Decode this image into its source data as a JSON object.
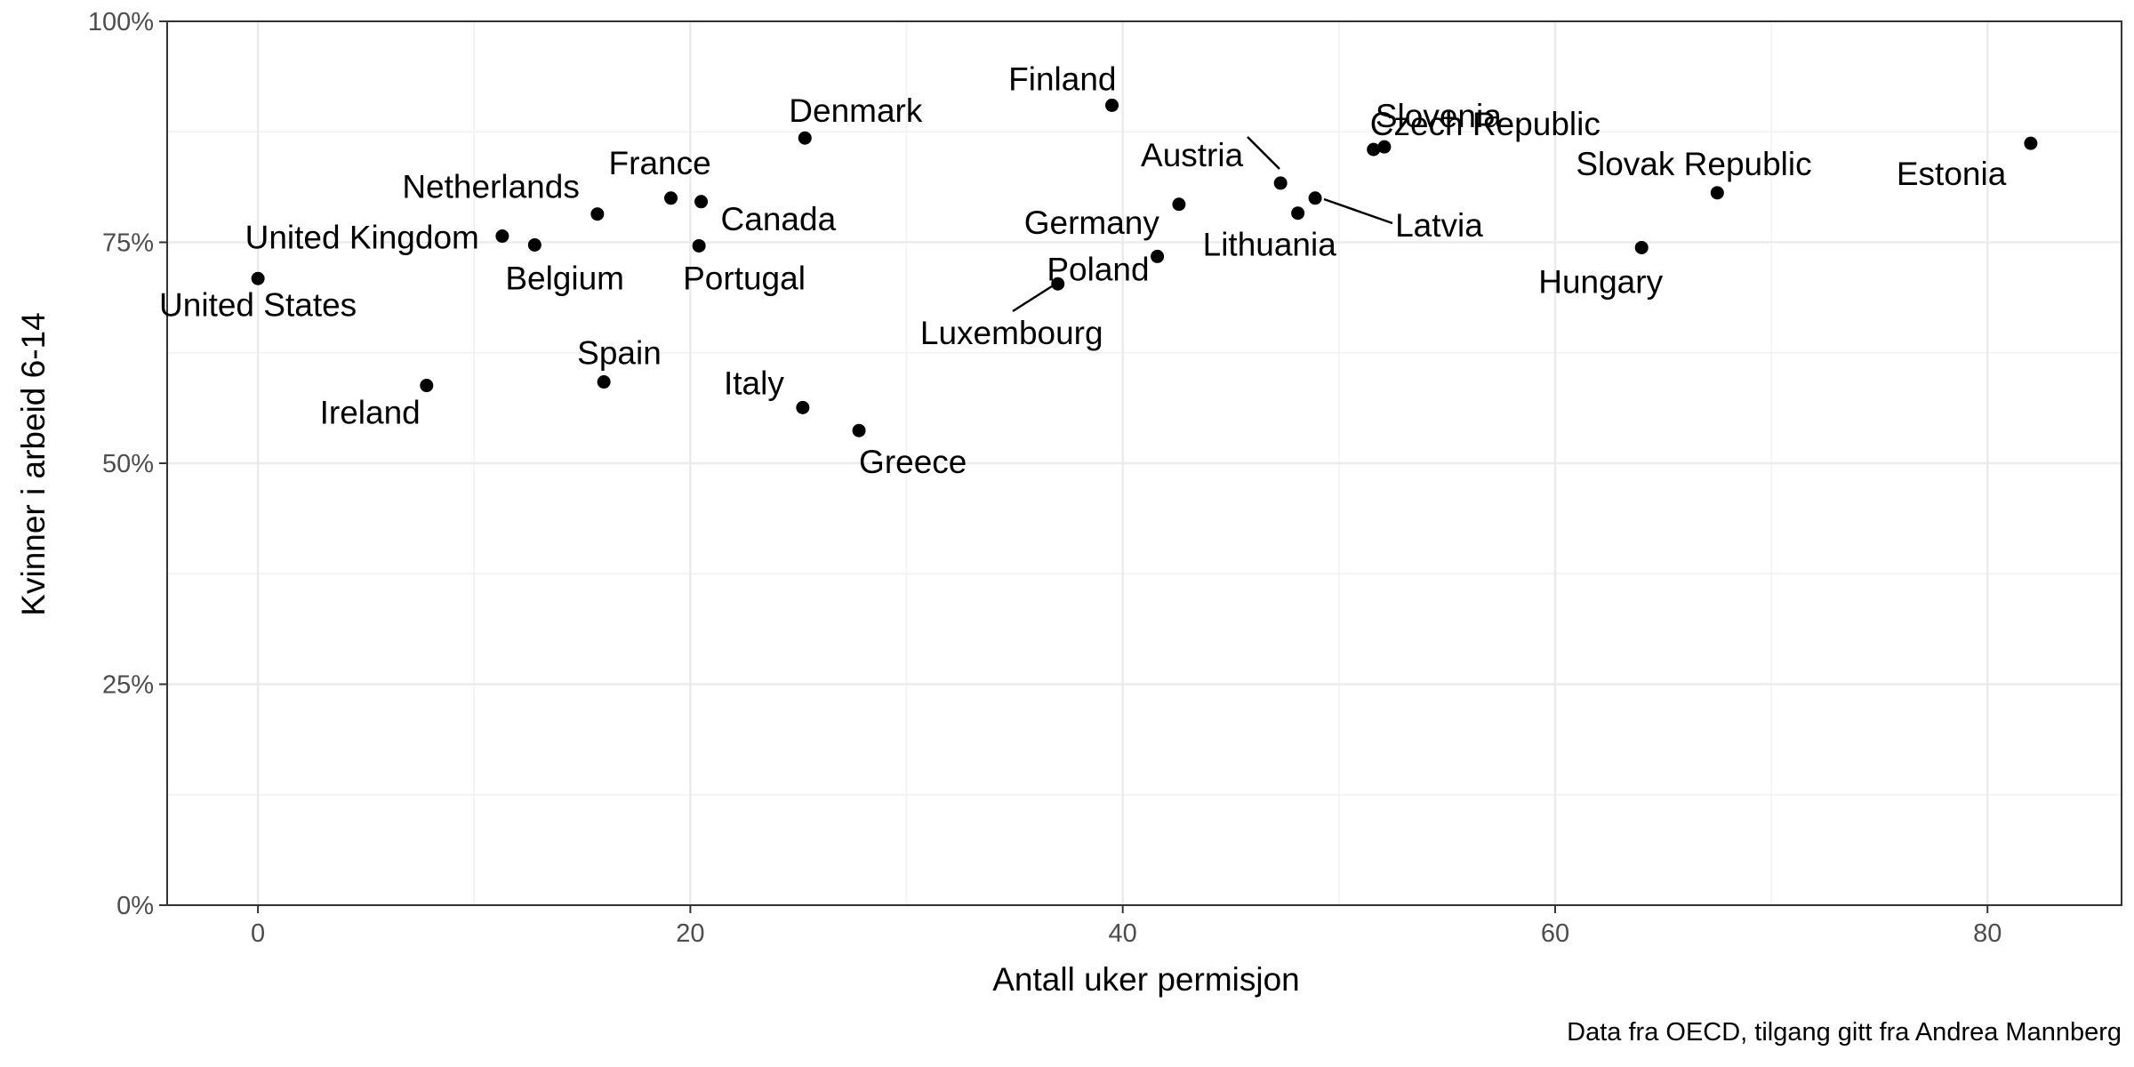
{
  "chart_data": {
    "type": "scatter",
    "title": "",
    "xlabel": "Antall uker permisjon",
    "ylabel": "Kvinner i arbeid 6-14",
    "caption": "Data fra OECD, tilgang gitt fra Andrea Mannberg",
    "xlim": [
      -4.2,
      86.2
    ],
    "ylim": [
      0,
      1
    ],
    "x_ticks": [
      0,
      20,
      40,
      60,
      80
    ],
    "x_tick_labels": [
      "0",
      "20",
      "40",
      "60",
      "80"
    ],
    "y_ticks": [
      0,
      0.25,
      0.5,
      0.75,
      1.0
    ],
    "y_tick_labels": [
      "0%",
      "25%",
      "50%",
      "75%",
      "100%"
    ],
    "grid": true,
    "points": [
      {
        "label": "United States",
        "x": 0,
        "y": 0.709
      },
      {
        "label": "Ireland",
        "x": 7.8,
        "y": 0.588
      },
      {
        "label": "United Kingdom",
        "x": 11.3,
        "y": 0.757
      },
      {
        "label": "Belgium",
        "x": 12.8,
        "y": 0.747
      },
      {
        "label": "Netherlands",
        "x": 15.7,
        "y": 0.782
      },
      {
        "label": "Spain",
        "x": 16.0,
        "y": 0.592
      },
      {
        "label": "France",
        "x": 19.1,
        "y": 0.8
      },
      {
        "label": "Portugal",
        "x": 20.4,
        "y": 0.746
      },
      {
        "label": "Canada",
        "x": 20.5,
        "y": 0.796
      },
      {
        "label": "Italy",
        "x": 25.2,
        "y": 0.563
      },
      {
        "label": "Denmark",
        "x": 25.3,
        "y": 0.868
      },
      {
        "label": "Greece",
        "x": 27.8,
        "y": 0.537
      },
      {
        "label": "Luxembourg",
        "x": 37.0,
        "y": 0.703
      },
      {
        "label": "Finland",
        "x": 39.5,
        "y": 0.905
      },
      {
        "label": "Poland",
        "x": 41.6,
        "y": 0.734
      },
      {
        "label": "Germany",
        "x": 42.6,
        "y": 0.793
      },
      {
        "label": "Austria",
        "x": 47.3,
        "y": 0.817
      },
      {
        "label": "Lithuania",
        "x": 48.1,
        "y": 0.783
      },
      {
        "label": "Latvia",
        "x": 48.9,
        "y": 0.8
      },
      {
        "label": "Czech Republic",
        "x": 51.6,
        "y": 0.855
      },
      {
        "label": "Slovenia",
        "x": 52.1,
        "y": 0.858
      },
      {
        "label": "Hungary",
        "x": 64.0,
        "y": 0.744
      },
      {
        "label": "Slovak Republic",
        "x": 67.5,
        "y": 0.806
      },
      {
        "label": "Estonia",
        "x": 82.0,
        "y": 0.862
      }
    ]
  }
}
